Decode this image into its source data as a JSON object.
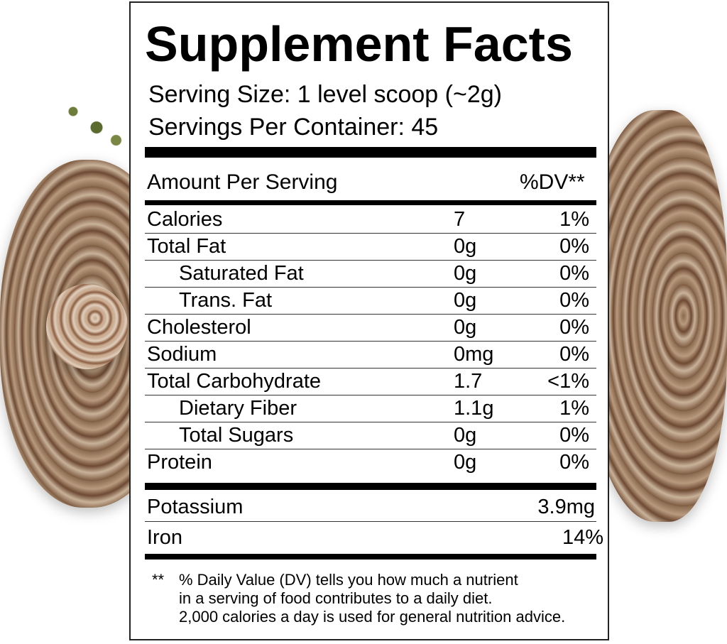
{
  "title": "Supplement Facts",
  "serving_size": "Serving Size: 1 level scoop (~2g)",
  "servings_per_container": "Servings Per Container:  45",
  "amount_header": "Amount Per Serving",
  "dv_header": "%DV**",
  "rows": [
    {
      "name": "Calories",
      "amount": "7",
      "dv": "1%",
      "indent": false
    },
    {
      "name": "Total Fat",
      "amount": "0g",
      "dv": "0%",
      "indent": false
    },
    {
      "name": "Saturated Fat",
      "amount": "0g",
      "dv": "0%",
      "indent": true
    },
    {
      "name": "Trans. Fat",
      "amount": "0g",
      "dv": "0%",
      "indent": true
    },
    {
      "name": "Cholesterol",
      "amount": "0g",
      "dv": "0%",
      "indent": false
    },
    {
      "name": "Sodium",
      "amount": "0mg",
      "dv": "0%",
      "indent": false
    },
    {
      "name": "Total Carbohydrate",
      "amount": "1.7",
      "dv": "<1%",
      "indent": false
    },
    {
      "name": "Dietary Fiber",
      "amount": "1.1g",
      "dv": "1%",
      "indent": true
    },
    {
      "name": "Total Sugars",
      "amount": "0g",
      "dv": "0%",
      "indent": true
    },
    {
      "name": "Protein",
      "amount": "0g",
      "dv": "0%",
      "indent": false
    }
  ],
  "minerals": [
    {
      "name": "Potassium",
      "value": "3.9mg"
    },
    {
      "name": "Iron",
      "value": "14%"
    }
  ],
  "footnote": {
    "marker": "**",
    "lines": [
      "% Daily Value (DV) tells you how much a nutrient",
      "in a serving of food contributes to a daily diet.",
      "2,000 calories a day is used for general nutrition advice."
    ]
  }
}
